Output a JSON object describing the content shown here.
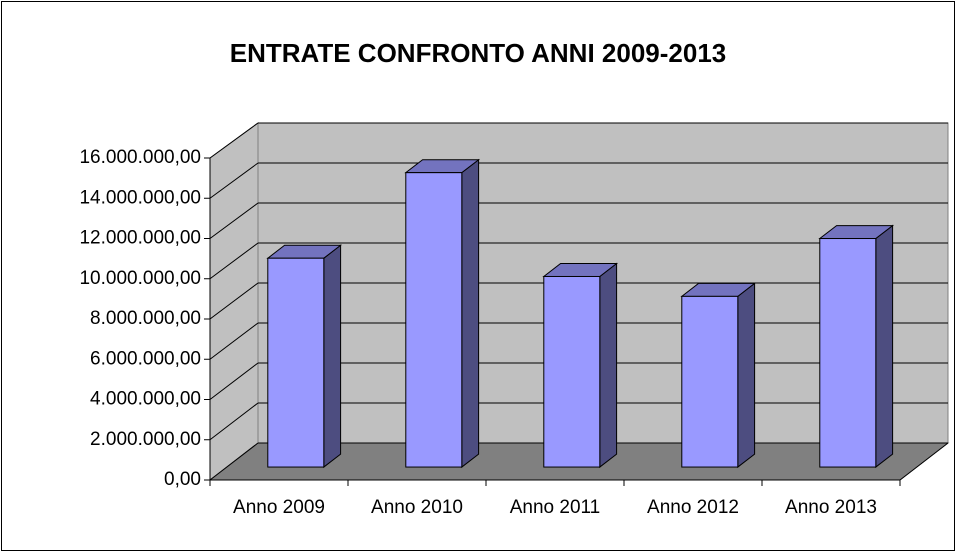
{
  "chart_data": {
    "type": "bar3d",
    "title": "ENTRATE CONFRONTO ANNI 2009-2013",
    "categories": [
      "Anno 2009",
      "Anno 2010",
      "Anno 2011",
      "Anno 2012",
      "Anno 2013"
    ],
    "values": [
      10400000,
      14660000,
      9490000,
      8500000,
      11380000
    ],
    "color": "#9999ff",
    "ylim": [
      0,
      16000000
    ],
    "yticks": [
      {
        "value": 0,
        "label": "0,00"
      },
      {
        "value": 2000000,
        "label": "2.000.000,00"
      },
      {
        "value": 4000000,
        "label": "4.000.000,00"
      },
      {
        "value": 6000000,
        "label": "6.000.000,00"
      },
      {
        "value": 8000000,
        "label": "8.000.000,00"
      },
      {
        "value": 10000000,
        "label": "10.000.000,00"
      },
      {
        "value": 12000000,
        "label": "12.000.000,00"
      },
      {
        "value": 14000000,
        "label": "14.000.000,00"
      },
      {
        "value": 16000000,
        "label": "16.000.000,00"
      }
    ],
    "grid": true
  }
}
